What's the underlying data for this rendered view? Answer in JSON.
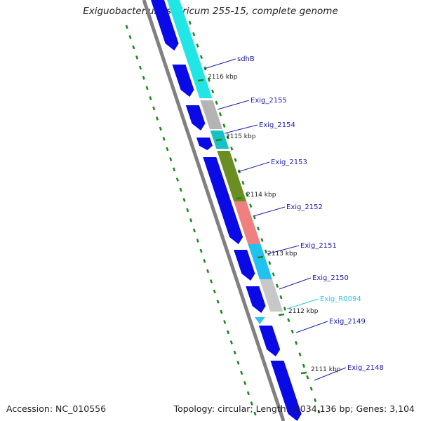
{
  "title": "Exiguobacterium sibiricum 255-15, complete genome",
  "footer": {
    "accession": "Accession: NC_010556",
    "summary": "Topology: circular; Length: 3,034,136 bp; Genes: 3,104"
  },
  "colors": {
    "forward_gene": "#0a0ae6",
    "backbone": "#808080",
    "tick": "#1a8a1a",
    "label": "#1b1bb5",
    "rna_label": "#33c4e6"
  },
  "tick_labels": [
    "2116 kbp",
    "2115 kbp",
    "2114 kbp",
    "2113 kbp",
    "2112 kbp",
    "2111 kbp"
  ],
  "feature_labels": [
    {
      "text": "sdhB",
      "color": "#1b1bb5"
    },
    {
      "text": "Exig_2155",
      "color": "#1b1bb5"
    },
    {
      "text": "Exig_2154",
      "color": "#1b1bb5"
    },
    {
      "text": "Exig_2153",
      "color": "#1b1bb5"
    },
    {
      "text": "Exig_2152",
      "color": "#1b1bb5"
    },
    {
      "text": "Exig_2151",
      "color": "#1b1bb5"
    },
    {
      "text": "Exig_2150",
      "color": "#1b1bb5"
    },
    {
      "text": "Exig_R0094",
      "color": "#33c4e6"
    },
    {
      "text": "Exig_2149",
      "color": "#1b1bb5"
    },
    {
      "text": "Exig_2148",
      "color": "#1b1bb5"
    }
  ],
  "cog_colors": [
    "#22e6e6",
    "#b4b4b4",
    "#19c2c2",
    "#6b8e23",
    "#f08080",
    "#22c2f0",
    "#c8c8c8"
  ]
}
